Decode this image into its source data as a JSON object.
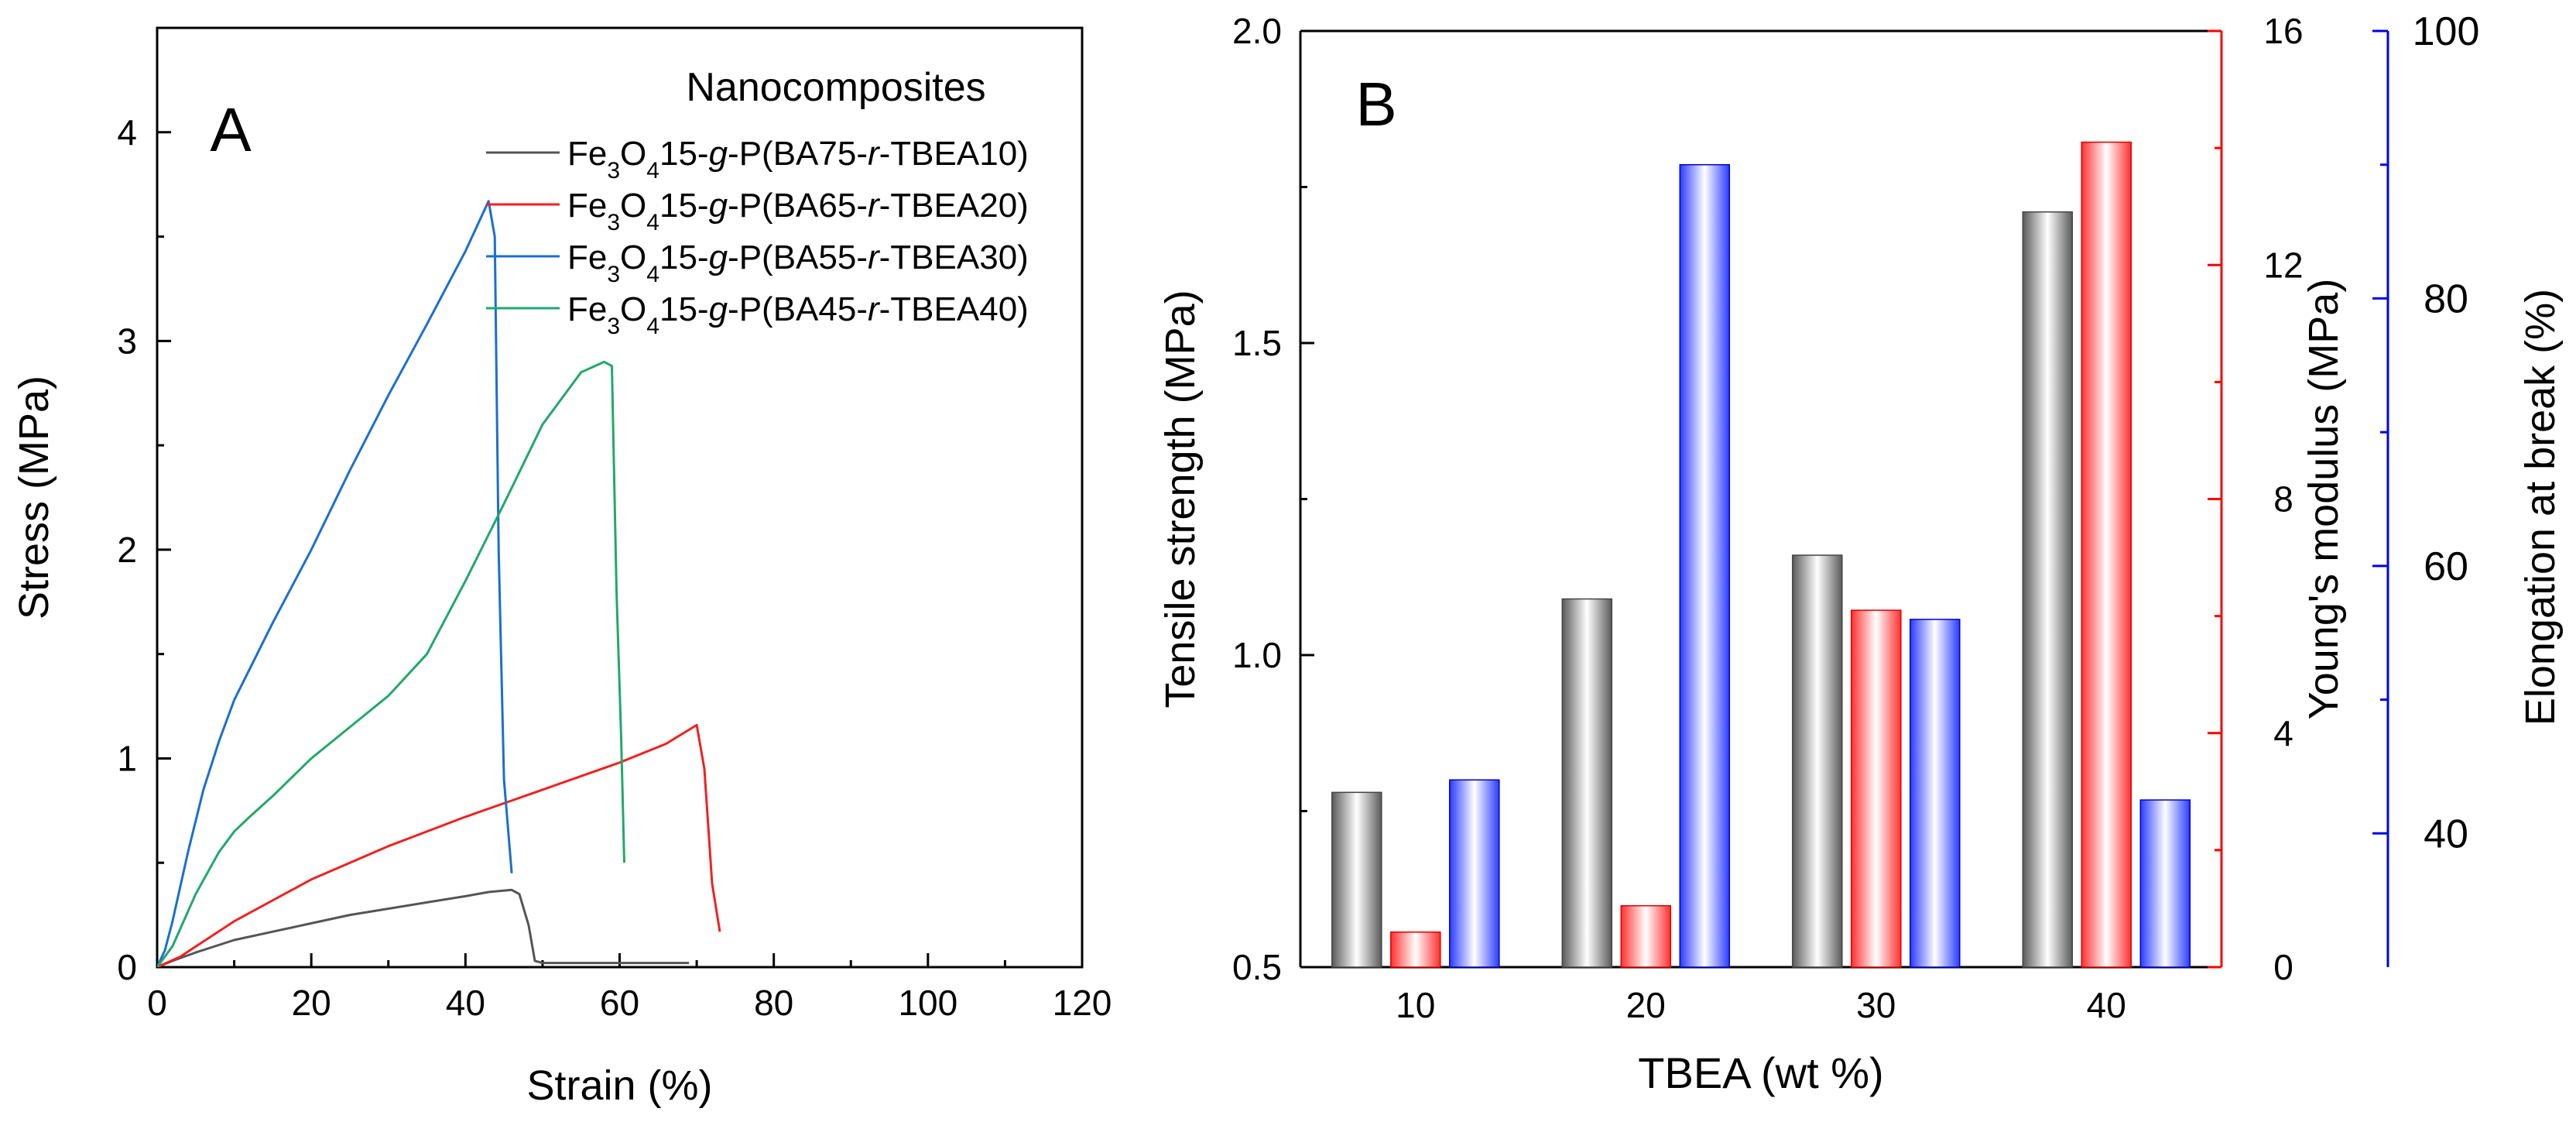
{
  "chart_data": [
    {
      "type": "line",
      "panel_label": "A",
      "xlabel": "Strain (%)",
      "ylabel": "Stress (MPa)",
      "xlim": [
        0,
        120
      ],
      "ylim": [
        0,
        4.5
      ],
      "xticks": [
        0,
        20,
        40,
        60,
        80,
        100,
        120
      ],
      "yticks": [
        0,
        1,
        2,
        3,
        4
      ],
      "legend_title": "Nanocomposites",
      "legend_position": "top-right",
      "series": [
        {
          "name": "Fe3O415-g-P(BA75-r-TBEA10)",
          "name_parts": [
            {
              "t": "Fe"
            },
            {
              "t": "3",
              "sub": true
            },
            {
              "t": "O"
            },
            {
              "t": "4",
              "sub": true
            },
            {
              "t": "15-"
            },
            {
              "t": "g",
              "italic": true
            },
            {
              "t": "-P(BA75-"
            },
            {
              "t": "r",
              "italic": true
            },
            {
              "t": "-TBEA10)"
            }
          ],
          "color": "#555555",
          "x": [
            0,
            2,
            5,
            10,
            15,
            20,
            25,
            30,
            35,
            40,
            43,
            46,
            47,
            48.2,
            49,
            50,
            60,
            69
          ],
          "y": [
            0,
            0.03,
            0.07,
            0.13,
            0.17,
            0.21,
            0.25,
            0.28,
            0.31,
            0.34,
            0.36,
            0.37,
            0.35,
            0.2,
            0.03,
            0.02,
            0.02,
            0.02
          ]
        },
        {
          "name": "Fe3O415-g-P(BA65-r-TBEA20)",
          "name_parts": [
            {
              "t": "Fe"
            },
            {
              "t": "3",
              "sub": true
            },
            {
              "t": "O"
            },
            {
              "t": "4",
              "sub": true
            },
            {
              "t": "15-"
            },
            {
              "t": "g",
              "italic": true
            },
            {
              "t": "-P(BA65-"
            },
            {
              "t": "r",
              "italic": true
            },
            {
              "t": "-TBEA20)"
            }
          ],
          "color": "#ee2222",
          "x": [
            0,
            3,
            10,
            20,
            30,
            40,
            50,
            60,
            66,
            70,
            71,
            72,
            73
          ],
          "y": [
            0,
            0.05,
            0.22,
            0.42,
            0.58,
            0.72,
            0.85,
            0.98,
            1.07,
            1.16,
            0.95,
            0.4,
            0.17
          ]
        },
        {
          "name": "Fe3O415-g-P(BA55-r-TBEA30)",
          "name_parts": [
            {
              "t": "Fe"
            },
            {
              "t": "3",
              "sub": true
            },
            {
              "t": "O"
            },
            {
              "t": "4",
              "sub": true
            },
            {
              "t": "15-"
            },
            {
              "t": "g",
              "italic": true
            },
            {
              "t": "-P(BA55-"
            },
            {
              "t": "r",
              "italic": true
            },
            {
              "t": "-TBEA30)"
            }
          ],
          "color": "#1a6fd1",
          "x": [
            0,
            1,
            2,
            4,
            6,
            8,
            10,
            15,
            20,
            25,
            30,
            35,
            40,
            43,
            43.8,
            44.3,
            45,
            46
          ],
          "y": [
            0,
            0.08,
            0.22,
            0.55,
            0.85,
            1.08,
            1.28,
            1.65,
            2.0,
            2.38,
            2.74,
            3.08,
            3.43,
            3.67,
            3.5,
            2.0,
            0.9,
            0.45
          ]
        },
        {
          "name": "Fe3O415-g-P(BA45-r-TBEA40)",
          "name_parts": [
            {
              "t": "Fe"
            },
            {
              "t": "3",
              "sub": true
            },
            {
              "t": "O"
            },
            {
              "t": "4",
              "sub": true
            },
            {
              "t": "15-"
            },
            {
              "t": "g",
              "italic": true
            },
            {
              "t": "-P(BA45-"
            },
            {
              "t": "r",
              "italic": true
            },
            {
              "t": "-TBEA40)"
            }
          ],
          "color": "#22a86b",
          "x": [
            0,
            2,
            5,
            8,
            10,
            12,
            15,
            20,
            25,
            30,
            35,
            40,
            45,
            50,
            55,
            58,
            59,
            59.6,
            60.2,
            60.6
          ],
          "y": [
            0,
            0.1,
            0.35,
            0.55,
            0.65,
            0.72,
            0.82,
            1.0,
            1.15,
            1.3,
            1.5,
            1.85,
            2.22,
            2.6,
            2.85,
            2.9,
            2.88,
            1.8,
            1.1,
            0.5
          ]
        }
      ]
    },
    {
      "type": "bar",
      "panel_label": "B",
      "xlabel": "TBEA (wt %)",
      "categories": [
        "10",
        "20",
        "30",
        "40"
      ],
      "axes": {
        "left": {
          "label": "Tensile strength (MPa)",
          "lim": [
            0.5,
            2.0
          ],
          "ticks": [
            "0.5",
            "1.0",
            "1.5",
            "2.0"
          ],
          "color": "#000000"
        },
        "right1": {
          "label": "Young's modulus (MPa)",
          "lim": [
            0,
            16
          ],
          "ticks": [
            "0",
            "4",
            "8",
            "12",
            "16"
          ],
          "color": "#ff0000"
        },
        "right2": {
          "label": "Elongation at break (%)",
          "lim": [
            30,
            100
          ],
          "ticks": [
            "40",
            "60",
            "80",
            "100"
          ],
          "color": "#0000ee"
        }
      },
      "series": [
        {
          "axis": "left",
          "color": "#777777",
          "values": [
            0.78,
            1.09,
            1.16,
            1.71
          ]
        },
        {
          "axis": "right1",
          "color": "#ff2222",
          "values": [
            0.6,
            1.05,
            6.1,
            14.1
          ]
        },
        {
          "axis": "right2",
          "color": "#2233ff",
          "values": [
            44.0,
            90.0,
            56.0,
            42.5
          ]
        }
      ]
    }
  ]
}
